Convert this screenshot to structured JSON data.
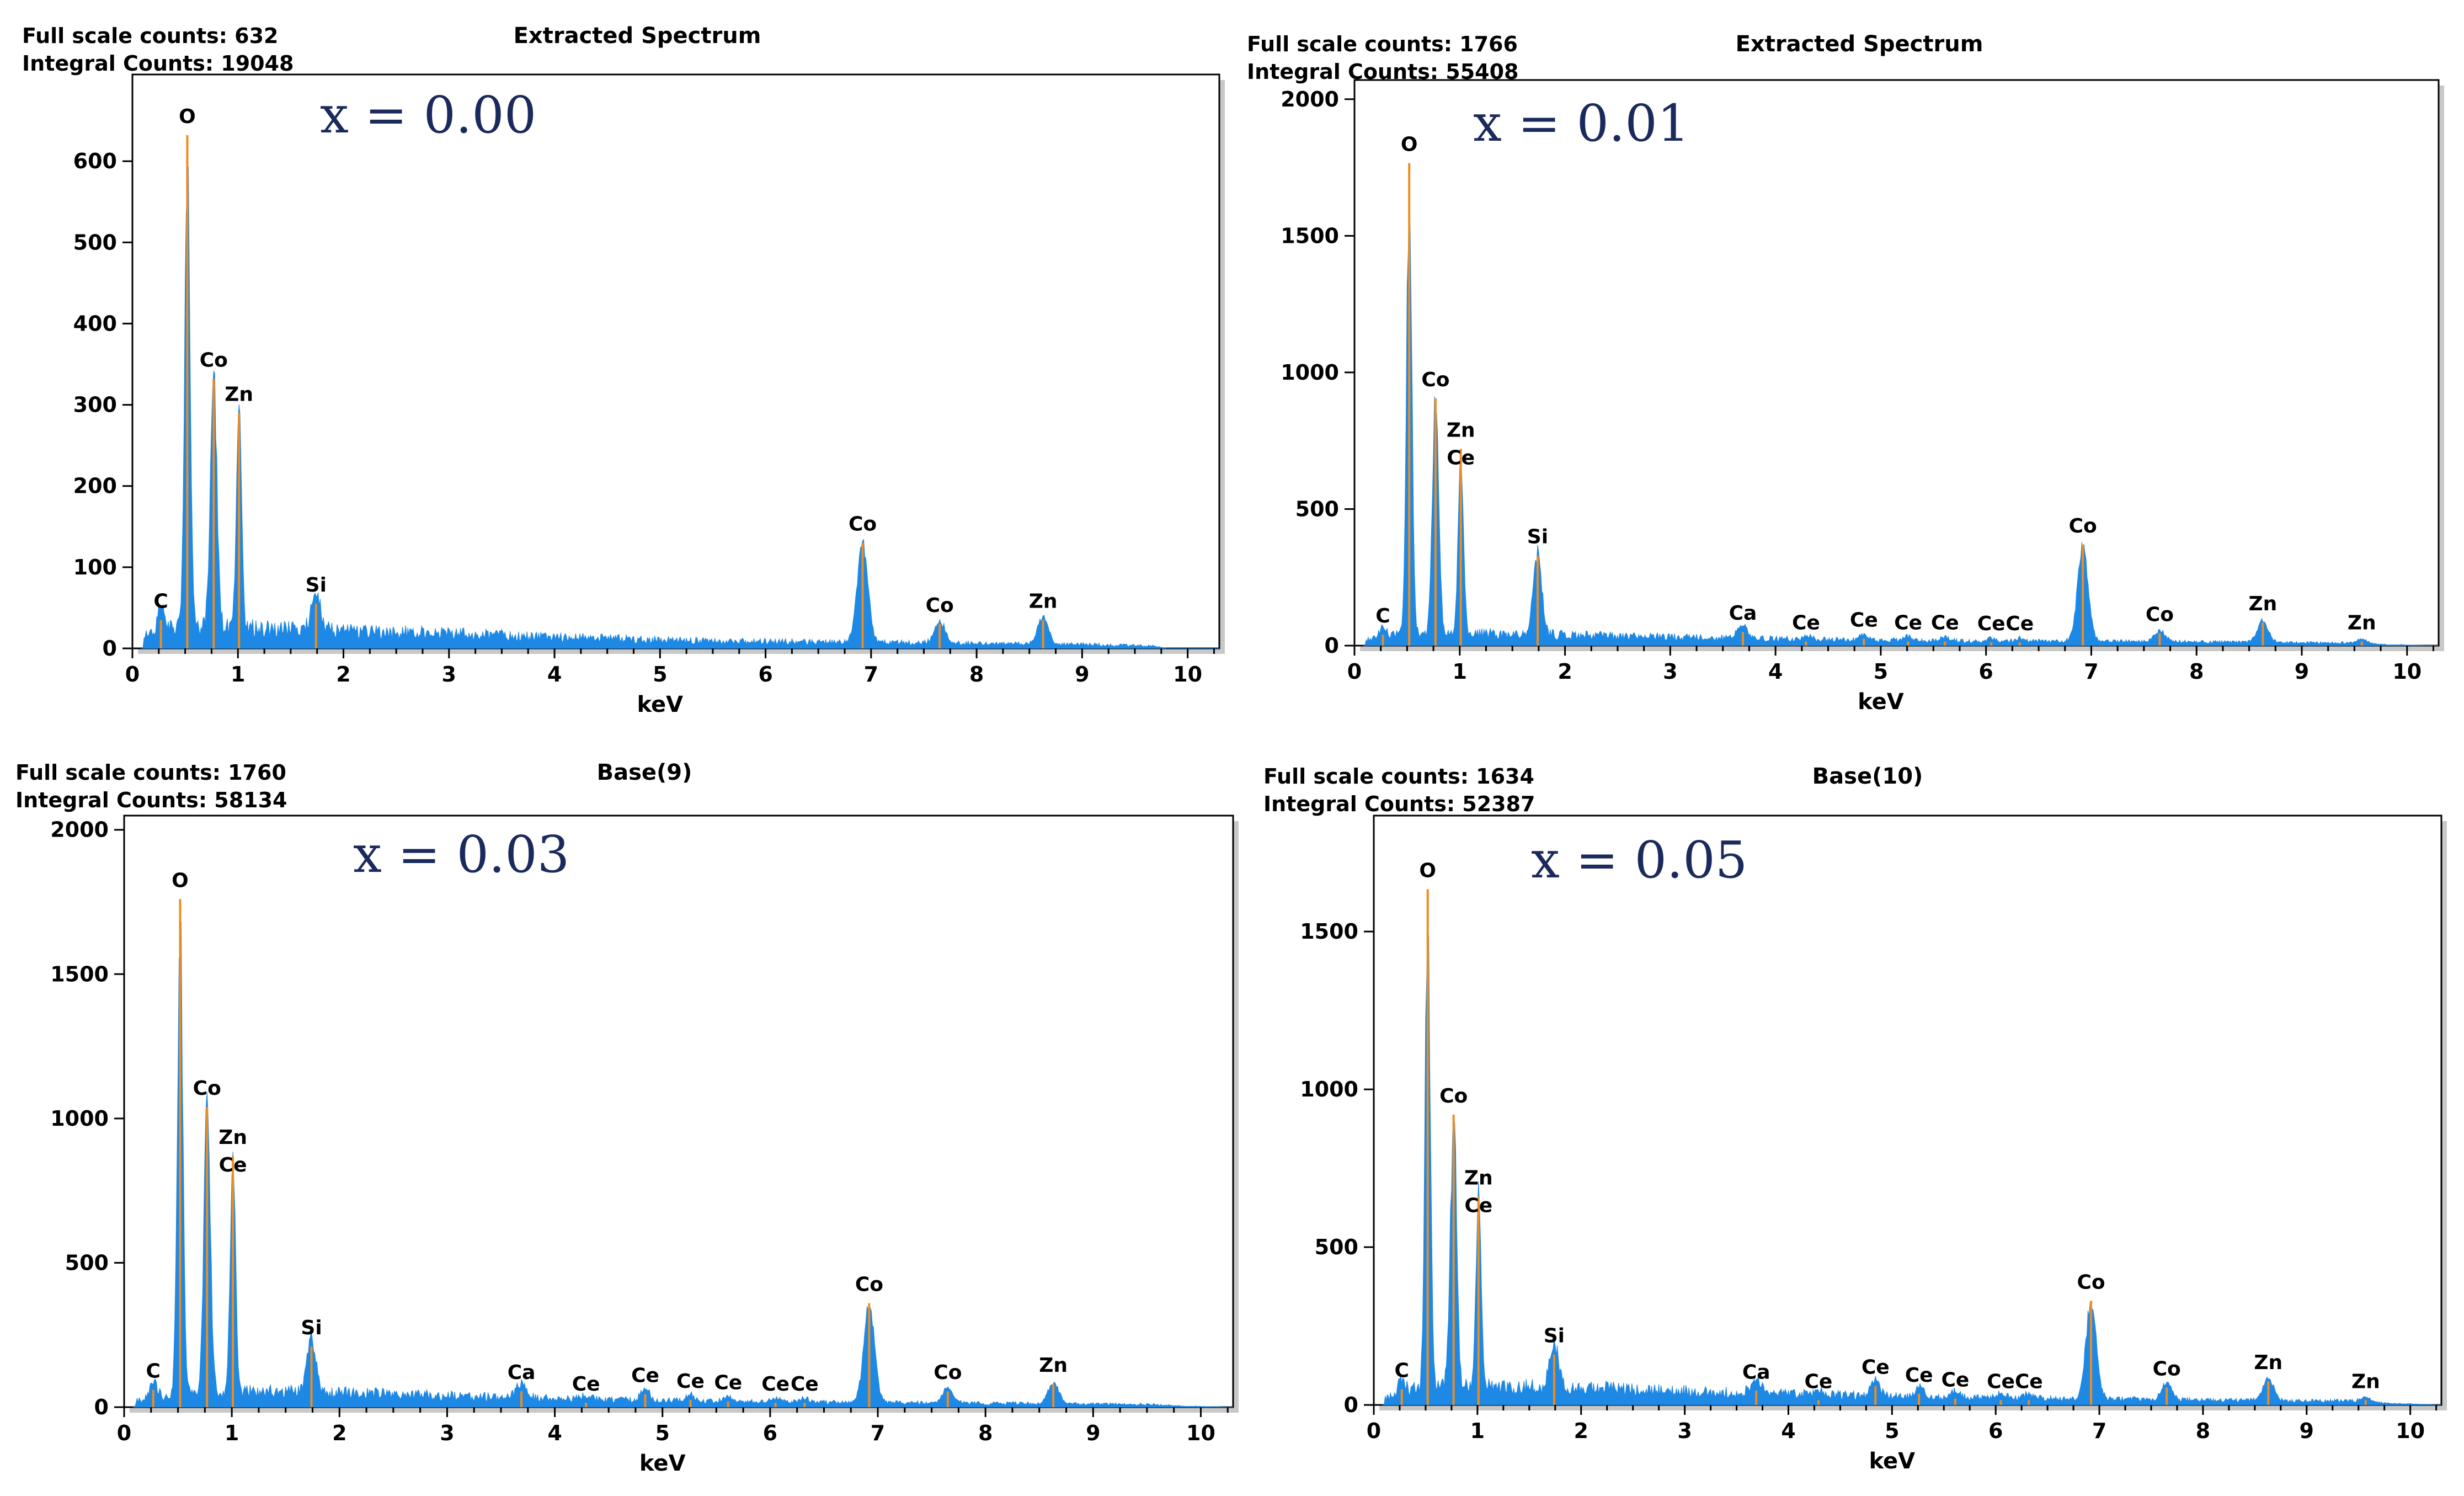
{
  "chart_data": [
    {
      "type": "bar",
      "title": "Extracted Spectrum",
      "full_scale_label": "Full scale counts: 632",
      "integral_label": "Integral Counts: 19048",
      "composition_label": "x = 0.00",
      "xlabel": "keV",
      "ylabel": "",
      "xlim": [
        0,
        10.3
      ],
      "ylim": [
        0,
        700
      ],
      "xticks": [
        0,
        1,
        2,
        3,
        4,
        5,
        6,
        7,
        8,
        9,
        10
      ],
      "yticks": [
        0,
        100,
        200,
        300,
        400,
        500,
        600
      ],
      "background": [
        [
          0.1,
          15
        ],
        [
          0.2,
          22
        ],
        [
          0.5,
          28
        ],
        [
          1.2,
          25
        ],
        [
          2.5,
          20
        ],
        [
          4,
          14
        ],
        [
          5.5,
          9
        ],
        [
          7.5,
          7
        ],
        [
          9,
          5
        ],
        [
          9.7,
          3
        ],
        [
          9.8,
          0
        ],
        [
          10.3,
          0
        ]
      ],
      "series": [
        {
          "name": "spectrum",
          "x": [
            0.27,
            0.52,
            0.77,
            1.01,
            1.74,
            6.92,
            7.65,
            8.63
          ],
          "values": [
            35,
            632,
            332,
            290,
            55,
            130,
            30,
            35
          ]
        }
      ],
      "peaks": [
        {
          "label": "C",
          "x": 0.27,
          "counts": 35,
          "width": 0.03
        },
        {
          "label": "O",
          "x": 0.52,
          "counts": 632,
          "width": 0.025
        },
        {
          "label": "Co",
          "x": 0.77,
          "counts": 332,
          "width": 0.03
        },
        {
          "label": "Zn",
          "x": 1.01,
          "counts": 290,
          "width": 0.025
        },
        {
          "label": "Si",
          "x": 1.74,
          "counts": 55,
          "width": 0.04
        },
        {
          "label": "Co",
          "x": 6.92,
          "counts": 130,
          "width": 0.05
        },
        {
          "label": "Co",
          "x": 7.65,
          "counts": 30,
          "width": 0.05
        },
        {
          "label": "Zn",
          "x": 8.63,
          "counts": 35,
          "width": 0.05
        }
      ]
    },
    {
      "type": "bar",
      "title": "Extracted Spectrum",
      "full_scale_label": "Full scale counts: 1766",
      "integral_label": "Integral Counts: 55408",
      "composition_label": "x = 0.01",
      "xlabel": "keV",
      "ylabel": "",
      "xlim": [
        0,
        10.3
      ],
      "ylim": [
        0,
        2050
      ],
      "xticks": [
        0,
        1,
        2,
        3,
        4,
        5,
        6,
        7,
        8,
        9,
        10
      ],
      "yticks": [
        0,
        500,
        1000,
        1500,
        2000
      ],
      "background": [
        [
          0.1,
          20
        ],
        [
          0.3,
          35
        ],
        [
          0.5,
          45
        ],
        [
          1.3,
          45
        ],
        [
          2.5,
          35
        ],
        [
          4,
          25
        ],
        [
          5.5,
          18
        ],
        [
          7.5,
          15
        ],
        [
          9.5,
          10
        ],
        [
          9.8,
          4
        ],
        [
          10.3,
          0
        ]
      ],
      "series": [
        {
          "name": "spectrum",
          "x": [
            0.27,
            0.52,
            0.77,
            1.01,
            1.74,
            3.69,
            4.29,
            4.84,
            5.26,
            5.61,
            6.05,
            6.32,
            6.92,
            7.65,
            8.63,
            9.57
          ],
          "values": [
            40,
            1766,
            905,
            720,
            330,
            50,
            15,
            25,
            15,
            15,
            12,
            12,
            370,
            45,
            85,
            15
          ]
        }
      ],
      "peaks": [
        {
          "label": "C",
          "x": 0.27,
          "counts": 40,
          "width": 0.03
        },
        {
          "label": "O",
          "x": 0.52,
          "counts": 1766,
          "width": 0.025
        },
        {
          "label": "Co",
          "x": 0.77,
          "counts": 905,
          "width": 0.03
        },
        {
          "label": "Zn",
          "x": 1.01,
          "counts": 720,
          "width": 0.025
        },
        {
          "label": "Ce",
          "x": 1.01,
          "counts": 720,
          "width": 0.0
        },
        {
          "label": "Si",
          "x": 1.74,
          "counts": 330,
          "width": 0.04
        },
        {
          "label": "Ca",
          "x": 3.69,
          "counts": 50,
          "width": 0.05
        },
        {
          "label": "Ce",
          "x": 4.29,
          "counts": 15,
          "width": 0.04
        },
        {
          "label": "Ce",
          "x": 4.84,
          "counts": 25,
          "width": 0.04
        },
        {
          "label": "Ce",
          "x": 5.26,
          "counts": 15,
          "width": 0.04
        },
        {
          "label": "Ce",
          "x": 5.61,
          "counts": 15,
          "width": 0.04
        },
        {
          "label": "Ce",
          "x": 6.05,
          "counts": 12,
          "width": 0.04
        },
        {
          "label": "Ce",
          "x": 6.32,
          "counts": 12,
          "width": 0.04
        },
        {
          "label": "Co",
          "x": 6.92,
          "counts": 370,
          "width": 0.05
        },
        {
          "label": "Co",
          "x": 7.65,
          "counts": 45,
          "width": 0.05
        },
        {
          "label": "Zn",
          "x": 8.63,
          "counts": 85,
          "width": 0.05
        },
        {
          "label": "Zn",
          "x": 9.57,
          "counts": 15,
          "width": 0.05
        }
      ]
    },
    {
      "type": "bar",
      "title": "Base(9)",
      "full_scale_label": "Full scale counts: 1760",
      "integral_label": "Integral Counts: 58134",
      "composition_label": "x = 0.03",
      "xlabel": "keV",
      "ylabel": "",
      "xlim": [
        0,
        10.3
      ],
      "ylim": [
        0,
        2030
      ],
      "xticks": [
        0,
        1,
        2,
        3,
        4,
        5,
        6,
        7,
        8,
        9,
        10
      ],
      "yticks": [
        0,
        500,
        1000,
        1500,
        2000
      ],
      "background": [
        [
          0.1,
          20
        ],
        [
          0.3,
          40
        ],
        [
          0.5,
          55
        ],
        [
          1.3,
          55
        ],
        [
          2.5,
          45
        ],
        [
          4,
          30
        ],
        [
          5.5,
          20
        ],
        [
          7.5,
          15
        ],
        [
          9.5,
          10
        ],
        [
          9.8,
          4
        ],
        [
          10.3,
          0
        ]
      ],
      "series": [
        {
          "name": "spectrum",
          "x": [
            0.27,
            0.52,
            0.77,
            1.01,
            1.74,
            3.69,
            4.29,
            4.84,
            5.26,
            5.61,
            6.05,
            6.32,
            6.92,
            7.65,
            8.63
          ],
          "values": [
            60,
            1760,
            1040,
            870,
            210,
            55,
            15,
            45,
            25,
            20,
            15,
            15,
            360,
            55,
            80
          ]
        }
      ],
      "peaks": [
        {
          "label": "C",
          "x": 0.27,
          "counts": 60,
          "width": 0.03
        },
        {
          "label": "O",
          "x": 0.52,
          "counts": 1760,
          "width": 0.025
        },
        {
          "label": "Co",
          "x": 0.77,
          "counts": 1040,
          "width": 0.03
        },
        {
          "label": "Zn",
          "x": 1.01,
          "counts": 870,
          "width": 0.025
        },
        {
          "label": "Ce",
          "x": 1.01,
          "counts": 870,
          "width": 0.0
        },
        {
          "label": "Si",
          "x": 1.74,
          "counts": 210,
          "width": 0.04
        },
        {
          "label": "Ca",
          "x": 3.69,
          "counts": 55,
          "width": 0.05
        },
        {
          "label": "Ce",
          "x": 4.29,
          "counts": 15,
          "width": 0.04
        },
        {
          "label": "Ce",
          "x": 4.84,
          "counts": 45,
          "width": 0.04
        },
        {
          "label": "Ce",
          "x": 5.26,
          "counts": 25,
          "width": 0.04
        },
        {
          "label": "Ce",
          "x": 5.61,
          "counts": 20,
          "width": 0.04
        },
        {
          "label": "Ce",
          "x": 6.05,
          "counts": 15,
          "width": 0.04
        },
        {
          "label": "Ce",
          "x": 6.32,
          "counts": 15,
          "width": 0.04
        },
        {
          "label": "Co",
          "x": 6.92,
          "counts": 360,
          "width": 0.05
        },
        {
          "label": "Co",
          "x": 7.65,
          "counts": 55,
          "width": 0.05
        },
        {
          "label": "Zn",
          "x": 8.63,
          "counts": 80,
          "width": 0.05
        }
      ]
    },
    {
      "type": "bar",
      "title": "Base(10)",
      "full_scale_label": "Full scale counts: 1634",
      "integral_label": "Integral Counts: 52387",
      "composition_label": "x = 0.05",
      "xlabel": "keV",
      "ylabel": "",
      "xlim": [
        0,
        10.3
      ],
      "ylim": [
        0,
        1850
      ],
      "xticks": [
        0,
        1,
        2,
        3,
        4,
        5,
        6,
        7,
        8,
        9,
        10
      ],
      "yticks": [
        0,
        500,
        1000,
        1500
      ],
      "background": [
        [
          0.1,
          20
        ],
        [
          0.3,
          45
        ],
        [
          0.5,
          60
        ],
        [
          1.3,
          60
        ],
        [
          2.5,
          50
        ],
        [
          4,
          35
        ],
        [
          5.5,
          25
        ],
        [
          7.5,
          18
        ],
        [
          9.5,
          12
        ],
        [
          9.8,
          5
        ],
        [
          10.3,
          0
        ]
      ],
      "series": [
        {
          "name": "spectrum",
          "x": [
            0.27,
            0.52,
            0.77,
            1.01,
            1.74,
            3.69,
            4.29,
            4.84,
            5.26,
            5.61,
            6.05,
            6.32,
            6.92,
            7.65,
            8.63,
            9.57
          ],
          "values": [
            50,
            1634,
            920,
            660,
            160,
            45,
            15,
            60,
            35,
            20,
            15,
            15,
            330,
            55,
            75,
            15
          ]
        }
      ],
      "peaks": [
        {
          "label": "C",
          "x": 0.27,
          "counts": 50,
          "width": 0.03
        },
        {
          "label": "O",
          "x": 0.52,
          "counts": 1634,
          "width": 0.025
        },
        {
          "label": "Co",
          "x": 0.77,
          "counts": 920,
          "width": 0.03
        },
        {
          "label": "Zn",
          "x": 1.01,
          "counts": 660,
          "width": 0.025
        },
        {
          "label": "Ce",
          "x": 1.01,
          "counts": 660,
          "width": 0.0
        },
        {
          "label": "Si",
          "x": 1.74,
          "counts": 160,
          "width": 0.04
        },
        {
          "label": "Ca",
          "x": 3.69,
          "counts": 45,
          "width": 0.05
        },
        {
          "label": "Ce",
          "x": 4.29,
          "counts": 15,
          "width": 0.04
        },
        {
          "label": "Ce",
          "x": 4.84,
          "counts": 60,
          "width": 0.04
        },
        {
          "label": "Ce",
          "x": 5.26,
          "counts": 35,
          "width": 0.04
        },
        {
          "label": "Ce",
          "x": 5.61,
          "counts": 20,
          "width": 0.04
        },
        {
          "label": "Ce",
          "x": 6.05,
          "counts": 15,
          "width": 0.04
        },
        {
          "label": "Ce",
          "x": 6.32,
          "counts": 15,
          "width": 0.04
        },
        {
          "label": "Co",
          "x": 6.92,
          "counts": 330,
          "width": 0.05
        },
        {
          "label": "Co",
          "x": 7.65,
          "counts": 55,
          "width": 0.05
        },
        {
          "label": "Zn",
          "x": 8.63,
          "counts": 75,
          "width": 0.05
        },
        {
          "label": "Zn",
          "x": 9.57,
          "counts": 15,
          "width": 0.05
        }
      ]
    }
  ],
  "colors": {
    "spectrum_fill": "#1e88e5",
    "peak_marker": "#f08c1c",
    "frame_shadow": "#c8c8c8",
    "axis": "#000000",
    "composition_text": "#1b2a5c"
  }
}
